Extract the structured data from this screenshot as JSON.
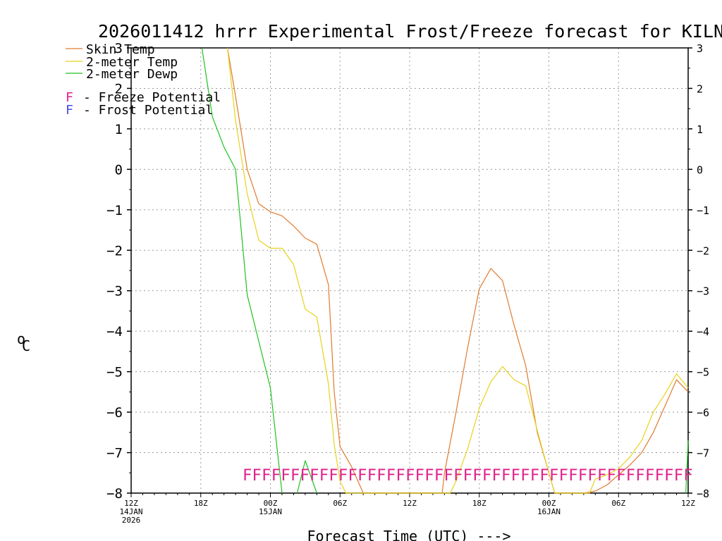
{
  "colors": {
    "skin": "#e07a2e",
    "temp": "#e8d21a",
    "dewp": "#1ec21e",
    "freeze": "#e0218a",
    "frost": "#4a4ae8",
    "grid": "#9a9a9a"
  },
  "chart_data": {
    "type": "line",
    "title": "2026011412 hrrr Experimental Frost/Freeze forecast for KILN",
    "ylabel_unit": "C",
    "ylabel_degree": "o",
    "xlabel": "Forecast Time (UTC) --->",
    "ylim": [
      -8,
      3
    ],
    "yticks": [
      3,
      2,
      1,
      0,
      -1,
      -2,
      -3,
      -4,
      -5,
      -6,
      -7,
      -8
    ],
    "xlim": [
      0,
      48
    ],
    "xticks": [
      {
        "x": 0,
        "label": "12Z",
        "sub1": "14JAN",
        "sub2": "2026"
      },
      {
        "x": 6,
        "label": "18Z",
        "sub1": "",
        "sub2": ""
      },
      {
        "x": 12,
        "label": "00Z",
        "sub1": "15JAN",
        "sub2": ""
      },
      {
        "x": 18,
        "label": "06Z",
        "sub1": "",
        "sub2": ""
      },
      {
        "x": 24,
        "label": "12Z",
        "sub1": "",
        "sub2": ""
      },
      {
        "x": 30,
        "label": "18Z",
        "sub1": "",
        "sub2": ""
      },
      {
        "x": 36,
        "label": "00Z",
        "sub1": "16JAN",
        "sub2": ""
      },
      {
        "x": 42,
        "label": "06Z",
        "sub1": "",
        "sub2": ""
      },
      {
        "x": 48,
        "label": "12Z",
        "sub1": "",
        "sub2": ""
      }
    ],
    "legend": {
      "series": [
        "Skin Temp",
        "2-meter Temp",
        "2-meter Dewp"
      ],
      "freeze_letter": "F",
      "freeze_text": "- Freeze Potential",
      "frost_letter": "F",
      "frost_text": "- Frost Potential"
    },
    "series": [
      {
        "name": "Skin Temp",
        "color_key": "skin",
        "points": [
          [
            8.3,
            3.0
          ],
          [
            9,
            1.8
          ],
          [
            10,
            0.0
          ],
          [
            11,
            -0.85
          ],
          [
            12,
            -1.05
          ],
          [
            13,
            -1.15
          ],
          [
            14,
            -1.4
          ],
          [
            15,
            -1.7
          ],
          [
            16,
            -1.85
          ],
          [
            17,
            -2.85
          ],
          [
            17.5,
            -5.5
          ],
          [
            18,
            -6.85
          ],
          [
            19,
            -7.35
          ],
          [
            20,
            -8.0
          ],
          [
            26.8,
            -8.0
          ],
          [
            27,
            -7.5
          ],
          [
            28,
            -6.0
          ],
          [
            29,
            -4.4
          ],
          [
            30,
            -2.95
          ],
          [
            31,
            -2.45
          ],
          [
            32,
            -2.75
          ],
          [
            33,
            -3.85
          ],
          [
            34,
            -4.85
          ],
          [
            35,
            -6.5
          ],
          [
            36.5,
            -8.0
          ],
          [
            39,
            -8.0
          ],
          [
            40,
            -7.95
          ],
          [
            41,
            -7.8
          ],
          [
            42,
            -7.55
          ],
          [
            43,
            -7.3
          ],
          [
            44,
            -7.0
          ],
          [
            45,
            -6.5
          ],
          [
            46,
            -5.85
          ],
          [
            47,
            -5.2
          ],
          [
            48,
            -5.5
          ]
        ]
      },
      {
        "name": "2-meter Temp",
        "color_key": "temp",
        "points": [
          [
            8.3,
            3.0
          ],
          [
            9,
            1.2
          ],
          [
            10,
            -0.6
          ],
          [
            11,
            -1.75
          ],
          [
            12,
            -1.95
          ],
          [
            13,
            -1.95
          ],
          [
            14,
            -2.35
          ],
          [
            15,
            -3.45
          ],
          [
            16,
            -3.65
          ],
          [
            17,
            -5.3
          ],
          [
            17.5,
            -6.8
          ],
          [
            18,
            -7.7
          ],
          [
            18.5,
            -8.0
          ],
          [
            27.5,
            -8.0
          ],
          [
            28,
            -7.7
          ],
          [
            29,
            -6.9
          ],
          [
            30,
            -5.9
          ],
          [
            31,
            -5.25
          ],
          [
            32,
            -4.87
          ],
          [
            33,
            -5.2
          ],
          [
            34,
            -5.35
          ],
          [
            35,
            -6.45
          ],
          [
            36,
            -7.5
          ],
          [
            36.5,
            -8.0
          ],
          [
            39.5,
            -8.0
          ],
          [
            40,
            -7.65
          ],
          [
            41,
            -7.55
          ],
          [
            42,
            -7.4
          ],
          [
            43,
            -7.1
          ],
          [
            44,
            -6.7
          ],
          [
            45,
            -6.0
          ],
          [
            46,
            -5.55
          ],
          [
            47,
            -5.05
          ],
          [
            48,
            -5.4
          ]
        ]
      },
      {
        "name": "2-meter Dewp",
        "color_key": "dewp",
        "points": [
          [
            6.1,
            3.0
          ],
          [
            7,
            1.3
          ],
          [
            8,
            0.55
          ],
          [
            9,
            0.0
          ],
          [
            10,
            -3.1
          ],
          [
            11,
            -4.25
          ],
          [
            12,
            -5.4
          ],
          [
            13,
            -8.0
          ]
        ]
      },
      {
        "name": "2-meter Dewp",
        "color_key": "dewp",
        "points": [
          [
            14.3,
            -8.0
          ],
          [
            15,
            -7.2
          ],
          [
            16,
            -8.0
          ]
        ]
      },
      {
        "name": "2-meter Dewp",
        "color_key": "dewp",
        "points": [
          [
            47.8,
            -8.0
          ],
          [
            48,
            -6.7
          ]
        ]
      }
    ],
    "flags": {
      "letter": "F",
      "y": -7.55,
      "start": 10,
      "end": 48,
      "count": 47
    }
  }
}
